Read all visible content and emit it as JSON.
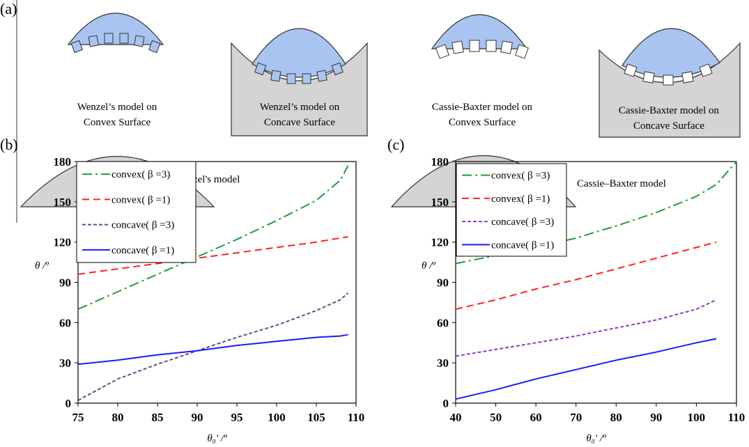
{
  "figure_a": {
    "label": "(a)",
    "diagrams": [
      {
        "caption": [
          "Wenzel’s model on",
          "Convex Surface"
        ]
      },
      {
        "caption": [
          "Wenzel’s model on",
          "Concave Surface"
        ]
      },
      {
        "caption": [
          "Cassie-Baxter model on",
          "Convex Surface"
        ]
      },
      {
        "caption": [
          "Cassie-Baxter model on",
          "Concave Surface"
        ]
      }
    ]
  },
  "chart_data": [
    {
      "type": "line",
      "panel_label": "(b)",
      "annotation": "Wenzel's model",
      "ylabel": "θ /º",
      "xlabel": "θ₀' /º",
      "x": [
        75,
        80,
        85,
        90,
        95,
        100,
        105,
        108,
        109
      ],
      "xlim": [
        75,
        110
      ],
      "xticks": [
        75,
        80,
        85,
        90,
        95,
        100,
        105,
        110
      ],
      "ylim": [
        0,
        180
      ],
      "yticks": [
        0,
        30,
        60,
        90,
        120,
        150,
        180
      ],
      "legend": "upper left",
      "series": [
        {
          "name": "convex( β =3)",
          "color": "#1f9e3c",
          "dash": "dashdot",
          "values": [
            70,
            83,
            96,
            109,
            122,
            136,
            151,
            166,
            177
          ]
        },
        {
          "name": "convex( β =1)",
          "color": "#ff2020",
          "dash": "dashed",
          "values": [
            96,
            100,
            104,
            108,
            112,
            116,
            120,
            123,
            124
          ]
        },
        {
          "name": "concave( β =3)",
          "color": "#5e4f86",
          "dash": "shortdash",
          "values": [
            2,
            18,
            29,
            39,
            49,
            58,
            69,
            77,
            82
          ]
        },
        {
          "name": "concave( β =1)",
          "color": "#1a1aff",
          "dash": "solid",
          "values": [
            29,
            32,
            36,
            39,
            43,
            46,
            49,
            50,
            51
          ]
        }
      ]
    },
    {
      "type": "line",
      "panel_label": "(c)",
      "annotation": "Cassie–Baxter model",
      "ylabel": "θ /º",
      "xlabel": "θ₀' /º",
      "x": [
        40,
        50,
        60,
        70,
        80,
        90,
        100,
        105,
        110
      ],
      "xlim": [
        40,
        110
      ],
      "xticks": [
        40,
        50,
        60,
        70,
        80,
        90,
        100,
        110
      ],
      "ylim": [
        0,
        180
      ],
      "yticks": [
        0,
        30,
        60,
        90,
        120,
        150,
        180
      ],
      "legend": "upper left",
      "series": [
        {
          "name": "convex( β =3)",
          "color": "#1f9e3c",
          "dash": "dashdot",
          "values": [
            104,
            110,
            116,
            123,
            132,
            142,
            154,
            163,
            180
          ]
        },
        {
          "name": "convex( β =1)",
          "color": "#ff2020",
          "dash": "dashed",
          "values": [
            70,
            77,
            85,
            92,
            100,
            108,
            116,
            120,
            null
          ]
        },
        {
          "name": "concave( β =3)",
          "color": "#8a3cc8",
          "dash": "shortdash",
          "values": [
            35,
            40,
            45,
            50,
            56,
            62,
            70,
            77,
            null
          ]
        },
        {
          "name": "concave( β =1)",
          "color": "#1a1aff",
          "dash": "solid",
          "values": [
            3,
            10,
            18,
            25,
            32,
            38,
            45,
            48,
            null
          ]
        }
      ]
    }
  ]
}
